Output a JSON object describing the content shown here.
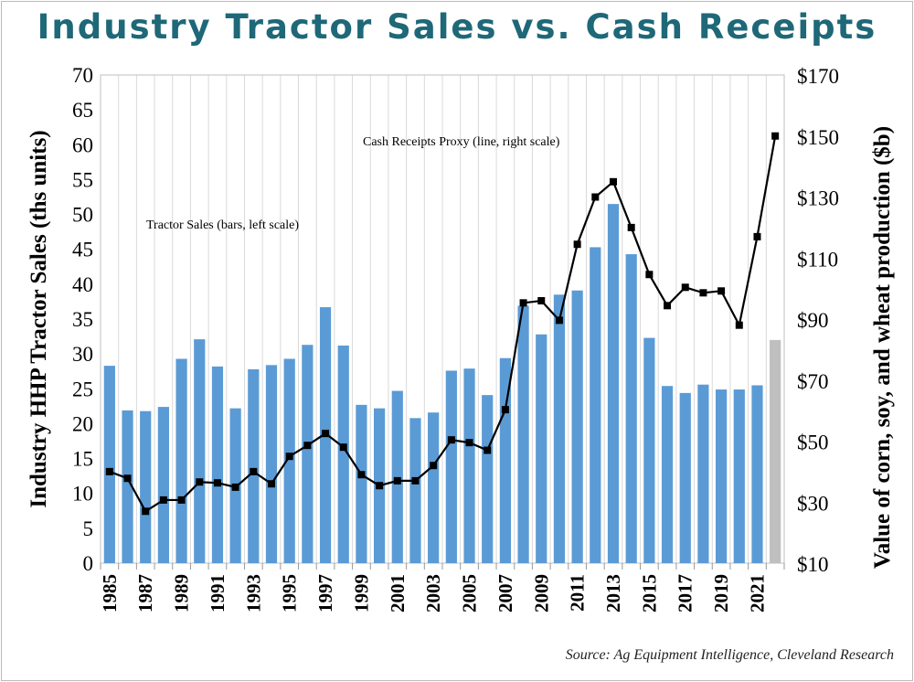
{
  "chart_data": {
    "type": "bar+line",
    "title": "Industry Tractor Sales vs. Cash Receipts",
    "ylabel": "Industry HHP Tractor Sales (ths units)",
    "y2label": "Value of corn, soy, and wheat production ($b)",
    "ylim": [
      0,
      70
    ],
    "y2lim": [
      10,
      170
    ],
    "yticks": [
      0,
      5,
      10,
      15,
      20,
      25,
      30,
      35,
      40,
      45,
      50,
      55,
      60,
      65,
      70
    ],
    "y2ticks": [
      "$10",
      "$30",
      "$50",
      "$70",
      "$90",
      "$110",
      "$130",
      "$150",
      "$170"
    ],
    "y2tick_values": [
      10,
      30,
      50,
      70,
      90,
      110,
      130,
      150,
      170
    ],
    "categories": [
      1985,
      1986,
      1987,
      1988,
      1989,
      1990,
      1991,
      1992,
      1993,
      1994,
      1995,
      1996,
      1997,
      1998,
      1999,
      2000,
      2001,
      2002,
      2003,
      2004,
      2005,
      2006,
      2007,
      2008,
      2009,
      2010,
      2011,
      2012,
      2013,
      2014,
      2015,
      2016,
      2017,
      2018,
      2019,
      2020,
      2021,
      2022
    ],
    "xtick_labels": [
      "1985",
      "1987",
      "1989",
      "1991",
      "1993",
      "1995",
      "1997",
      "1999",
      "2001",
      "2003",
      "2005",
      "2007",
      "2009",
      "2011",
      "2013",
      "2015",
      "2017",
      "2019",
      "2021"
    ],
    "grid": true,
    "series": [
      {
        "name": "Tractor Sales (bars, left scale)",
        "type": "bar",
        "axis": "left",
        "color": "#5b9bd5",
        "highlight_last_color": "#bfbfbf",
        "values": [
          28.3,
          21.9,
          21.8,
          22.4,
          29.3,
          32.1,
          28.2,
          22.2,
          27.8,
          28.4,
          29.3,
          31.3,
          36.7,
          31.2,
          22.7,
          22.2,
          24.7,
          20.8,
          21.6,
          27.6,
          27.9,
          24.1,
          29.4,
          36.9,
          32.8,
          38.5,
          39.1,
          45.3,
          51.5,
          44.3,
          32.3,
          25.4,
          24.4,
          25.6,
          24.9,
          24.9,
          25.5,
          32.0
        ]
      },
      {
        "name": "Cash Receipts Proxy (line, right scale)",
        "type": "line",
        "axis": "right",
        "color": "#000000",
        "values": [
          40,
          37.8,
          27,
          30.7,
          30.7,
          36.6,
          36.3,
          34.9,
          40,
          36,
          45,
          48.6,
          52.5,
          48,
          39,
          35.4,
          37,
          37,
          42,
          50.4,
          49.5,
          47,
          60.3,
          95.3,
          96,
          89.6,
          114.5,
          130,
          135,
          120,
          104.6,
          94.4,
          100.4,
          98.6,
          99.2,
          88,
          117,
          150
        ]
      }
    ],
    "source": "Source: Ag Equipment Intelligence, Cleveland Research"
  }
}
